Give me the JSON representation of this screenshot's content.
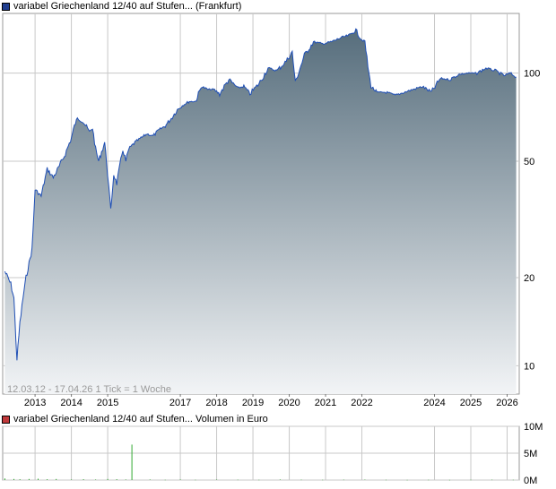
{
  "price_chart": {
    "legend": "variabel Griechenland 12/40 auf Stufen... (Frankfurt)",
    "legend_color": "#1f3d8f",
    "info_text": "12.03.12 - 17.04.26   1 Tick = 1 Woche",
    "line_color": "#1f4fb5",
    "fill_top_color": "#566d7c",
    "fill_bottom_color": "#f2f4f6",
    "y_scale": "log",
    "y_ticks": [
      "10",
      "20",
      "50",
      "100"
    ],
    "x_ticks": [
      "2013",
      "2014",
      "2015",
      "2017",
      "2018",
      "2019",
      "2020",
      "2021",
      "2022",
      "2024",
      "2025",
      "2026"
    ]
  },
  "volume_chart": {
    "legend": "variabel Griechenland 12/40 auf Stufen... Volumen in Euro",
    "legend_color": "#c0393b",
    "bar_color": "#33aa33",
    "y_ticks": [
      "0M",
      "5M",
      "10M"
    ]
  },
  "chart_data": [
    {
      "type": "area",
      "title": "variabel Griechenland 12/40 auf Stufen... (Frankfurt)",
      "y_scale": "log",
      "ylim": [
        8,
        160
      ],
      "x": [
        "2012-03",
        "2012-05",
        "2012-06",
        "2012-07",
        "2012-08",
        "2012-09",
        "2012-10",
        "2012-12",
        "2013-01",
        "2013-03",
        "2013-05",
        "2013-07",
        "2013-09",
        "2013-11",
        "2014-01",
        "2014-02",
        "2014-03",
        "2014-05",
        "2014-07",
        "2014-08",
        "2014-09",
        "2014-10",
        "2014-12",
        "2015-01",
        "2015-02",
        "2015-03",
        "2015-04",
        "2015-06",
        "2015-07",
        "2015-08",
        "2015-10",
        "2015-12",
        "2016-02",
        "2016-04",
        "2016-06",
        "2016-08",
        "2016-10",
        "2016-12",
        "2017-02",
        "2017-04",
        "2017-06",
        "2017-08",
        "2017-10",
        "2017-12",
        "2018-02",
        "2018-05",
        "2018-08",
        "2018-10",
        "2018-12",
        "2019-03",
        "2019-06",
        "2019-09",
        "2019-12",
        "2020-02",
        "2020-03",
        "2020-06",
        "2020-09",
        "2020-12",
        "2021-03",
        "2021-06",
        "2021-09",
        "2021-11",
        "2022-01",
        "2022-02",
        "2022-03",
        "2022-04",
        "2022-06",
        "2022-09",
        "2022-12",
        "2023-03",
        "2023-06",
        "2023-09",
        "2023-12",
        "2024-03",
        "2024-06",
        "2024-09",
        "2024-12",
        "2025-03",
        "2025-06",
        "2025-09",
        "2025-12",
        "2026-02",
        "2026-04"
      ],
      "values": [
        21,
        19,
        17,
        10.5,
        14,
        17,
        20,
        25,
        40,
        38,
        47,
        44,
        48,
        53,
        60,
        66,
        70,
        68,
        63,
        65,
        55,
        50,
        58,
        45,
        34,
        45,
        42,
        55,
        50,
        55,
        58,
        60,
        62,
        61,
        64,
        66,
        70,
        75,
        78,
        80,
        80,
        90,
        88,
        88,
        85,
        95,
        89,
        90,
        85,
        92,
        104,
        102,
        110,
        118,
        93,
        115,
        128,
        126,
        128,
        132,
        135,
        140,
        130,
        128,
        105,
        90,
        86,
        86,
        84,
        86,
        88,
        90,
        86,
        96,
        95,
        99,
        100,
        100,
        104,
        102,
        98,
        100,
        97
      ],
      "x_ticks": [
        "2013",
        "2014",
        "2015",
        "2017",
        "2018",
        "2019",
        "2020",
        "2021",
        "2022",
        "2024",
        "2025",
        "2026"
      ],
      "y_ticks": [
        10,
        20,
        50,
        100
      ]
    },
    {
      "type": "bar",
      "title": "variabel Griechenland 12/40 auf Stufen... Volumen in Euro",
      "ylabel": "",
      "ylim": [
        0,
        10
      ],
      "x": [
        "2012-03",
        "2012-06",
        "2012-08",
        "2012-11",
        "2013-02",
        "2013-05",
        "2013-08",
        "2014-01",
        "2014-05",
        "2014-09",
        "2015-01",
        "2015-04",
        "2015-07",
        "2015-09",
        "2016-03",
        "2016-08",
        "2017-01",
        "2017-06",
        "2018-01",
        "2018-08",
        "2019-03",
        "2019-10",
        "2020-05",
        "2020-12",
        "2021-07",
        "2022-02",
        "2022-09",
        "2023-04",
        "2023-11",
        "2024-06",
        "2025-01",
        "2025-08",
        "2026-03"
      ],
      "values": [
        0.3,
        0.2,
        0.15,
        0.2,
        0.25,
        0.15,
        0.2,
        0.1,
        0.15,
        0.1,
        0.2,
        0.15,
        0.1,
        6.6,
        0.1,
        0.05,
        0.1,
        0.05,
        0.08,
        0.06,
        0.05,
        0.1,
        0.07,
        0.05,
        0.06,
        0.08,
        0.05,
        0.04,
        0.05,
        0.04,
        0.05,
        0.06,
        0.05
      ],
      "y_ticks": [
        0,
        5,
        10
      ]
    }
  ]
}
